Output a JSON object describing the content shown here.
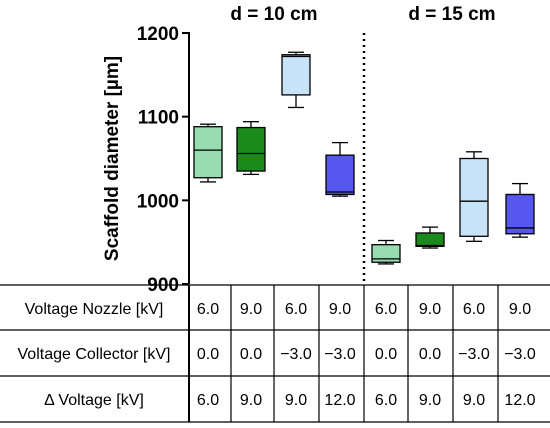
{
  "chart_data": {
    "type": "box",
    "ylabel": "Scaffold diameter [µm]",
    "ylim": [
      900,
      1200
    ],
    "yticks": [
      900,
      1000,
      1100,
      1200
    ],
    "grid": false,
    "panels": [
      {
        "title": "d = 10 cm",
        "groups": [
          0,
          1,
          2,
          3
        ]
      },
      {
        "title": "d = 15 cm",
        "groups": [
          4,
          5,
          6,
          7
        ]
      }
    ],
    "boxes": [
      {
        "color": "#98dcb0",
        "min": 1022,
        "q1": 1027,
        "median": 1060,
        "q3": 1088,
        "max": 1091
      },
      {
        "color": "#1a8a1a",
        "min": 1031,
        "q1": 1035,
        "median": 1056,
        "q3": 1087,
        "max": 1094
      },
      {
        "color": "#c6e3f8",
        "min": 1111,
        "q1": 1126,
        "median": 1172,
        "q3": 1174,
        "max": 1177
      },
      {
        "color": "#5656f0",
        "min": 1005,
        "q1": 1007,
        "median": 1010,
        "q3": 1054,
        "max": 1069
      },
      {
        "color": "#98dcb0",
        "min": 924,
        "q1": 926,
        "median": 930,
        "q3": 947,
        "max": 952
      },
      {
        "color": "#1a8a1a",
        "min": 943,
        "q1": 945,
        "median": 946,
        "q3": 961,
        "max": 968
      },
      {
        "color": "#c6e3f8",
        "min": 951,
        "q1": 957,
        "median": 999,
        "q3": 1050,
        "max": 1058
      },
      {
        "color": "#5656f0",
        "min": 956,
        "q1": 960,
        "median": 967,
        "q3": 1007,
        "max": 1020
      }
    ],
    "table": [
      {
        "label": "Voltage Nozzle [kV]",
        "values": [
          "6.0",
          "9.0",
          "6.0",
          "9.0",
          "6.0",
          "9.0",
          "6.0",
          "9.0"
        ]
      },
      {
        "label": "Voltage Collector [kV]",
        "values": [
          "0.0",
          "0.0",
          "−3.0",
          "−3.0",
          "0.0",
          "0.0",
          "−3.0",
          "−3.0"
        ]
      },
      {
        "label": "Δ Voltage [kV]",
        "values": [
          "6.0",
          "9.0",
          "9.0",
          "12.0",
          "6.0",
          "9.0",
          "9.0",
          "12.0"
        ]
      }
    ]
  }
}
